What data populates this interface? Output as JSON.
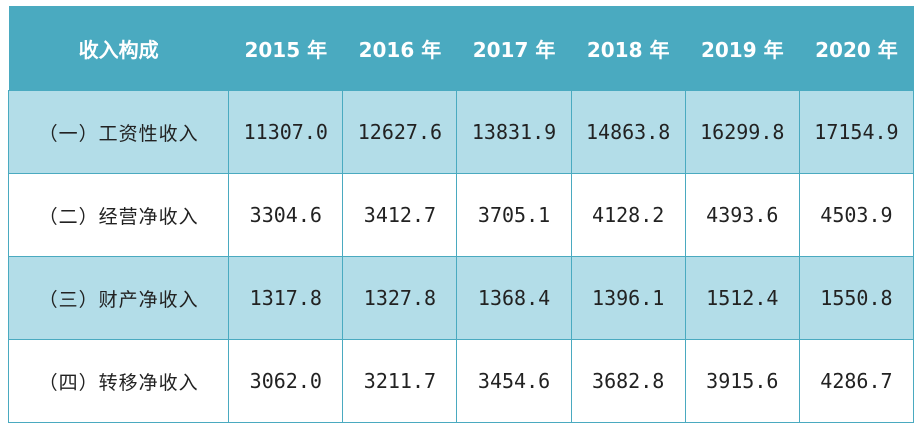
{
  "table": {
    "header": {
      "label": "收入构成",
      "years": [
        "2015 年",
        "2016 年",
        "2017 年",
        "2018 年",
        "2019 年",
        "2020 年"
      ]
    },
    "rows": [
      {
        "label": "（一）工资性收入",
        "values": [
          "11307.0",
          "12627.6",
          "13831.9",
          "14863.8",
          "16299.8",
          "17154.9"
        ]
      },
      {
        "label": "（二）经营净收入",
        "values": [
          "3304.6",
          "3412.7",
          "3705.1",
          "4128.2",
          "4393.6",
          "4503.9"
        ]
      },
      {
        "label": "（三）财产净收入",
        "values": [
          "1317.8",
          "1327.8",
          "1368.4",
          "1396.1",
          "1512.4",
          "1550.8"
        ]
      },
      {
        "label": "（四）转移净收入",
        "values": [
          "3062.0",
          "3211.7",
          "3454.6",
          "3682.8",
          "3915.6",
          "4286.7"
        ]
      }
    ],
    "colors": {
      "header_bg": "#4aaac0",
      "header_text": "#ffffff",
      "shaded_row_bg": "#b3dde8",
      "plain_row_bg": "#ffffff",
      "border": "#4aaac0"
    }
  }
}
